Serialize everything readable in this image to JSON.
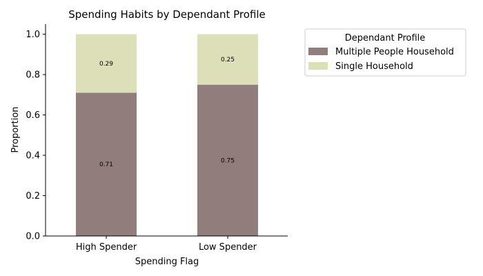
{
  "chart_data": {
    "type": "bar",
    "stacked": true,
    "title": "Spending Habits by Dependant Profile",
    "xlabel": "Spending Flag",
    "ylabel": "Proportion",
    "ylim": [
      0,
      1.05
    ],
    "yticks": [
      "0.0",
      "0.2",
      "0.4",
      "0.6",
      "0.8",
      "1.0"
    ],
    "categories": [
      "High Spender",
      "Low Spender"
    ],
    "series": [
      {
        "name": "Multiple People Household",
        "color": "#917d7b",
        "values": [
          0.71,
          0.75
        ],
        "labels": [
          "0.71",
          "0.75"
        ]
      },
      {
        "name": "Single Household",
        "color": "#dddfb9",
        "values": [
          0.29,
          0.25
        ],
        "labels": [
          "0.29",
          "0.25"
        ]
      }
    ],
    "legend": {
      "title": "Dependant Profile",
      "placement": "outside-top-right"
    },
    "grid": false
  }
}
